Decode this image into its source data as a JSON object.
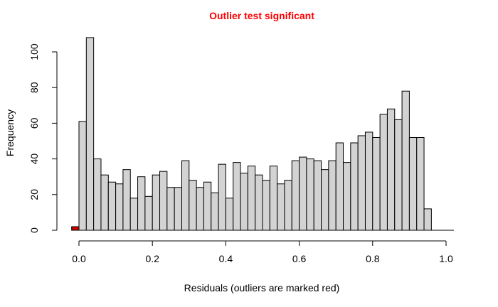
{
  "chart_data": {
    "type": "bar",
    "subtype": "histogram",
    "title": "Outlier test significant",
    "title_color": "#ff0000",
    "xlabel": "Residuals (outliers are marked red)",
    "ylabel": "Frequency",
    "xlim": [
      -0.02,
      1.0
    ],
    "ylim": [
      0,
      108
    ],
    "bin_width": 0.02,
    "bin_start": -0.02,
    "values": [
      2,
      61,
      108,
      40,
      31,
      27,
      26,
      34,
      18,
      30,
      19,
      31,
      33,
      24,
      24,
      39,
      28,
      24,
      27,
      21,
      37,
      18,
      38,
      32,
      36,
      31,
      28,
      36,
      26,
      28,
      39,
      41,
      40,
      39,
      34,
      39,
      49,
      38,
      49,
      53,
      55,
      52,
      65,
      68,
      62,
      78,
      52,
      52,
      12
    ],
    "outlier_bins": [
      0
    ],
    "bar_fill": "#d3d3d3",
    "outlier_fill": "#cc0000",
    "x_ticks": [
      "0.0",
      "0.2",
      "0.4",
      "0.6",
      "0.8",
      "1.0"
    ],
    "x_tick_values": [
      0,
      0.2,
      0.4,
      0.6,
      0.8,
      1.0
    ],
    "y_ticks": [
      "0",
      "20",
      "40",
      "60",
      "80",
      "100"
    ],
    "y_tick_values": [
      0,
      20,
      40,
      60,
      80,
      100
    ],
    "grid": false,
    "legend": "none"
  }
}
